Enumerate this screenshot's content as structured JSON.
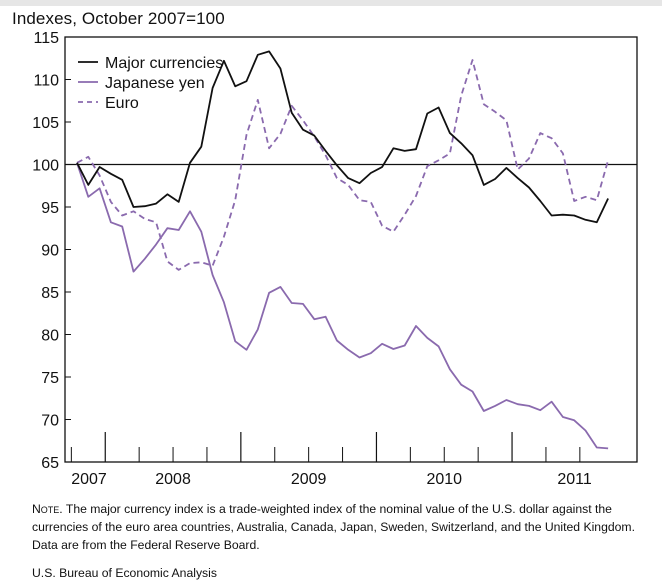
{
  "page": {
    "subtitle": "Indexes, October 2007=100",
    "note_label": "Note.",
    "note_text": "The major currency index is a trade-weighted index of the nominal value of the U.S. dollar against the currencies of the euro area countries, Australia, Canada, Japan, Sweden, Switzerland, and the United Kingdom. Data are from the Federal Reserve Board.",
    "source": "U.S. Bureau of Economic Analysis"
  },
  "chart_data": {
    "type": "line",
    "title": "",
    "ylabel": "Indexes, October 2007=100",
    "xlabel": "",
    "ylim": [
      65,
      115
    ],
    "yticks": [
      65,
      70,
      75,
      80,
      85,
      90,
      95,
      100,
      105,
      110,
      115
    ],
    "x_tick_labels": [
      "2007",
      "2008",
      "2009",
      "2010",
      "2011"
    ],
    "x_start": "2007-10",
    "reference_line": 100,
    "legend_position": "top-left",
    "colors": {
      "major": "#111111",
      "yen": "#8a6aae",
      "euro": "#8a6aae"
    },
    "series": [
      {
        "name": "Major currencies",
        "style": "solid",
        "values": [
          100.2,
          97.6,
          99.7,
          98.9,
          98.2,
          95.0,
          95.1,
          95.4,
          96.5,
          95.6,
          100.2,
          102.1,
          109.0,
          112.2,
          109.2,
          109.8,
          112.9,
          113.3,
          111.3,
          106.1,
          104.1,
          103.4,
          101.6,
          99.9,
          98.4,
          97.8,
          99.0,
          99.7,
          101.9,
          101.6,
          101.8,
          106.0,
          106.7,
          103.7,
          102.5,
          101.1,
          97.6,
          98.3,
          99.6,
          98.4,
          97.3,
          95.7,
          94.0,
          94.1,
          94.0,
          93.5,
          93.2,
          96.0
        ]
      },
      {
        "name": "Japanese yen",
        "style": "solid",
        "values": [
          100.2,
          96.2,
          97.2,
          93.2,
          92.7,
          87.4,
          88.9,
          90.6,
          92.5,
          92.3,
          94.5,
          92.1,
          87.0,
          83.8,
          79.2,
          78.2,
          80.6,
          84.9,
          85.6,
          83.7,
          83.6,
          81.8,
          82.1,
          79.3,
          78.2,
          77.3,
          77.8,
          78.9,
          78.3,
          78.7,
          81.0,
          79.6,
          78.6,
          75.9,
          74.1,
          73.3,
          71.0,
          71.6,
          72.3,
          71.8,
          71.6,
          71.1,
          72.1,
          70.3,
          69.9,
          68.7,
          66.7,
          66.6
        ]
      },
      {
        "name": "Euro",
        "style": "dashed",
        "values": [
          100.2,
          100.9,
          98.7,
          95.6,
          94.0,
          94.5,
          93.6,
          93.2,
          88.6,
          87.6,
          88.4,
          88.5,
          88.1,
          91.5,
          95.8,
          103.5,
          107.6,
          101.9,
          103.6,
          106.9,
          105.2,
          103.3,
          101.1,
          98.4,
          97.6,
          95.8,
          95.6,
          92.8,
          92.1,
          94.1,
          96.3,
          99.8,
          100.5,
          101.3,
          108.1,
          112.3,
          107.1,
          106.2,
          105.2,
          99.4,
          100.7,
          103.7,
          103.1,
          101.3,
          95.7,
          96.2,
          95.8,
          100.5
        ]
      }
    ]
  }
}
